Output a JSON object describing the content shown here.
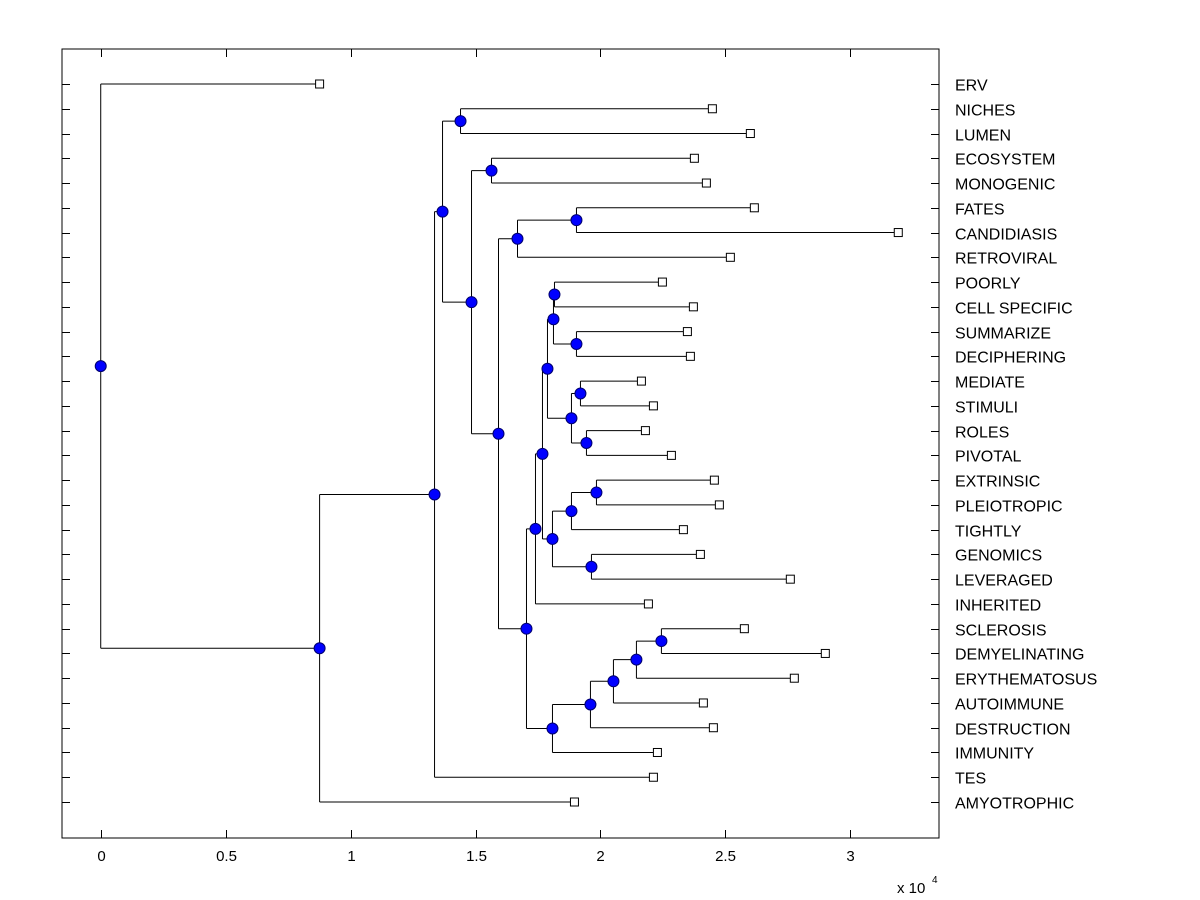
{
  "chart_data": {
    "type": "dendrogram",
    "title": "",
    "xlabel": "",
    "ylabel": "",
    "x_multiplier_label": "x 10",
    "x_multiplier_exponent": "4",
    "xlim": [
      -0.155,
      3.355
    ],
    "xticks": [
      0,
      0.5,
      1,
      1.5,
      2,
      2.5,
      3
    ],
    "xtick_labels": [
      "0",
      "0.5",
      "1",
      "1.5",
      "2",
      "2.5",
      "3"
    ],
    "grid": false,
    "colors": {
      "internal_node": "#0000ff",
      "leaf_marker_fill": "#ffffff",
      "line": "#000000"
    },
    "leaves": [
      {
        "label": "ERV",
        "x": 0.876
      },
      {
        "label": "NICHES",
        "x": 2.448
      },
      {
        "label": "LUMEN",
        "x": 2.6
      },
      {
        "label": "ECOSYSTEM",
        "x": 2.376
      },
      {
        "label": "MONOGENIC",
        "x": 2.424
      },
      {
        "label": "FATES",
        "x": 2.616
      },
      {
        "label": "CANDIDIASIS",
        "x": 3.192
      },
      {
        "label": "RETROVIRAL",
        "x": 2.52
      },
      {
        "label": "POORLY",
        "x": 2.248
      },
      {
        "label": "CELL SPECIFIC",
        "x": 2.372
      },
      {
        "label": "SUMMARIZE",
        "x": 2.348
      },
      {
        "label": "DECIPHERING",
        "x": 2.36
      },
      {
        "label": "MEDIATE",
        "x": 2.164
      },
      {
        "label": "STIMULI",
        "x": 2.212
      },
      {
        "label": "ROLES",
        "x": 2.18
      },
      {
        "label": "PIVOTAL",
        "x": 2.284
      },
      {
        "label": "EXTRINSIC",
        "x": 2.456
      },
      {
        "label": "PLEIOTROPIC",
        "x": 2.476
      },
      {
        "label": "TIGHTLY",
        "x": 2.332
      },
      {
        "label": "GENOMICS",
        "x": 2.4
      },
      {
        "label": "LEVERAGED",
        "x": 2.76
      },
      {
        "label": "INHERITED",
        "x": 2.192
      },
      {
        "label": "SCLEROSIS",
        "x": 2.576
      },
      {
        "label": "DEMYELINATING",
        "x": 2.9
      },
      {
        "label": "ERYTHEMATOSUS",
        "x": 2.776
      },
      {
        "label": "AUTOIMMUNE",
        "x": 2.412
      },
      {
        "label": "DESTRUCTION",
        "x": 2.452
      },
      {
        "label": "IMMUNITY",
        "x": 2.228
      },
      {
        "label": "TES",
        "x": 2.212
      },
      {
        "label": "AMYOTROPHIC",
        "x": 1.896
      }
    ],
    "tree": {
      "x": 0,
      "children": [
        "ERV",
        {
          "x": 0.876,
          "children": [
            {
              "x": 1.336,
              "children": [
                {
                  "x": 1.368,
                  "children": [
                    {
                      "x": 1.44,
                      "children": [
                        "NICHES",
                        "LUMEN"
                      ]
                    },
                    {
                      "x": 1.484,
                      "children": [
                        {
                          "x": 1.564,
                          "children": [
                            "ECOSYSTEM",
                            "MONOGENIC"
                          ]
                        },
                        {
                          "x": 1.592,
                          "children": [
                            {
                              "x": 1.668,
                              "children": [
                                {
                                  "x": 1.904,
                                  "children": [
                                    "FATES",
                                    "CANDIDIASIS"
                                  ]
                                },
                                "RETROVIRAL"
                              ]
                            },
                            {
                              "x": 1.704,
                              "children": [
                                {
                                  "x": 1.74,
                                  "children": [
                                    {
                                      "x": 1.768,
                                      "children": [
                                        {
                                          "x": 1.788,
                                          "children": [
                                            {
                                              "x": 1.812,
                                              "children": [
                                                {
                                                  "x": 1.816,
                                                  "children": [
                                                    "POORLY",
                                                    "CELL SPECIFIC"
                                                  ]
                                                },
                                                {
                                                  "x": 1.904,
                                                  "children": [
                                                    "SUMMARIZE",
                                                    "DECIPHERING"
                                                  ]
                                                }
                                              ]
                                            },
                                            {
                                              "x": 1.884,
                                              "children": [
                                                {
                                                  "x": 1.92,
                                                  "children": [
                                                    "MEDIATE",
                                                    "STIMULI"
                                                  ]
                                                },
                                                {
                                                  "x": 1.944,
                                                  "children": [
                                                    "ROLES",
                                                    "PIVOTAL"
                                                  ]
                                                }
                                              ]
                                            }
                                          ]
                                        },
                                        {
                                          "x": 1.808,
                                          "children": [
                                            {
                                              "x": 1.884,
                                              "children": [
                                                {
                                                  "x": 1.984,
                                                  "children": [
                                                    "EXTRINSIC",
                                                    "PLEIOTROPIC"
                                                  ]
                                                },
                                                "TIGHTLY"
                                              ]
                                            },
                                            {
                                              "x": 1.964,
                                              "children": [
                                                "GENOMICS",
                                                "LEVERAGED"
                                              ]
                                            }
                                          ]
                                        }
                                      ]
                                    },
                                    "INHERITED"
                                  ]
                                },
                                {
                                  "x": 1.808,
                                  "children": [
                                    {
                                      "x": 1.96,
                                      "children": [
                                        {
                                          "x": 2.052,
                                          "children": [
                                            {
                                              "x": 2.144,
                                              "children": [
                                                {
                                                  "x": 2.244,
                                                  "children": [
                                                    "SCLEROSIS",
                                                    "DEMYELINATING"
                                                  ]
                                                },
                                                "ERYTHEMATOSUS"
                                              ]
                                            },
                                            "AUTOIMMUNE"
                                          ]
                                        },
                                        "DESTRUCTION"
                                      ]
                                    },
                                    "IMMUNITY"
                                  ]
                                }
                              ]
                            }
                          ]
                        }
                      ]
                    }
                  ]
                },
                "TES"
              ]
            },
            "AMYOTROPHIC"
          ]
        }
      ]
    }
  }
}
